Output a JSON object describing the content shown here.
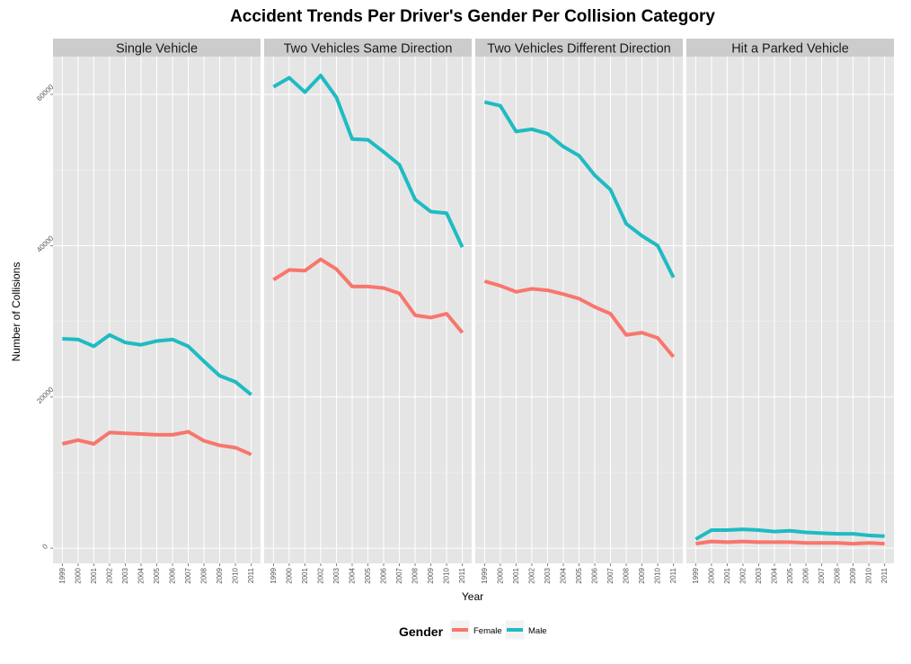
{
  "chart_data": {
    "type": "line",
    "title": "Accident Trends Per Driver's Gender Per Collision Category",
    "xlabel": "Year",
    "ylabel": "Number of Collisions",
    "ylim": [
      -2000,
      65000
    ],
    "yticks": [
      0,
      20000,
      40000,
      60000
    ],
    "ytick_labels": [
      "0",
      "20000",
      "40000",
      "60000"
    ],
    "x": [
      "1999",
      "2000",
      "2001",
      "2002",
      "2003",
      "2004",
      "2005",
      "2006",
      "2007",
      "2008",
      "2009",
      "2010",
      "2011"
    ],
    "grid": true,
    "legend": {
      "title": "Gender",
      "placement": "bottom",
      "entries": [
        "Female",
        "Male"
      ]
    },
    "colors": {
      "Female": "#F8766D",
      "Male": "#1FBBC2",
      "panel": "#E5E5E5",
      "strip": "#CCCCCC",
      "grid": "#FFFFFF"
    },
    "facets": [
      {
        "label": "Single Vehicle",
        "series": [
          {
            "name": "Female",
            "values": [
              13800,
              14300,
              13800,
              15300,
              15200,
              15100,
              15000,
              15000,
              15400,
              14200,
              13600,
              13300,
              12400
            ]
          },
          {
            "name": "Male",
            "values": [
              27700,
              27600,
              26700,
              28200,
              27200,
              26900,
              27400,
              27600,
              26700,
              24700,
              22800,
              22000,
              20300
            ]
          }
        ]
      },
      {
        "label": "Two Vehicles Same Direction",
        "series": [
          {
            "name": "Female",
            "values": [
              35500,
              36800,
              36700,
              38200,
              36900,
              34600,
              34600,
              34400,
              33700,
              30800,
              30500,
              31000,
              28500
            ]
          },
          {
            "name": "Male",
            "values": [
              61000,
              62200,
              60300,
              62500,
              59600,
              54100,
              54000,
              52400,
              50700,
              46100,
              44500,
              44300,
              39800
            ]
          }
        ]
      },
      {
        "label": "Two Vehicles Different Direction",
        "series": [
          {
            "name": "Female",
            "values": [
              35300,
              34700,
              33900,
              34300,
              34100,
              33600,
              33000,
              31900,
              31000,
              28200,
              28500,
              27800,
              25300
            ]
          },
          {
            "name": "Male",
            "values": [
              59000,
              58500,
              55100,
              55400,
              54800,
              53100,
              51900,
              49300,
              47400,
              42900,
              41300,
              40000,
              35800
            ]
          }
        ]
      },
      {
        "label": "Hit a Parked Vehicle",
        "series": [
          {
            "name": "Female",
            "values": [
              600,
              900,
              800,
              900,
              800,
              800,
              800,
              700,
              700,
              700,
              600,
              700,
              600
            ]
          },
          {
            "name": "Male",
            "values": [
              1200,
              2400,
              2400,
              2500,
              2400,
              2200,
              2300,
              2100,
              2000,
              1900,
              1900,
              1700,
              1600
            ]
          }
        ]
      }
    ]
  }
}
